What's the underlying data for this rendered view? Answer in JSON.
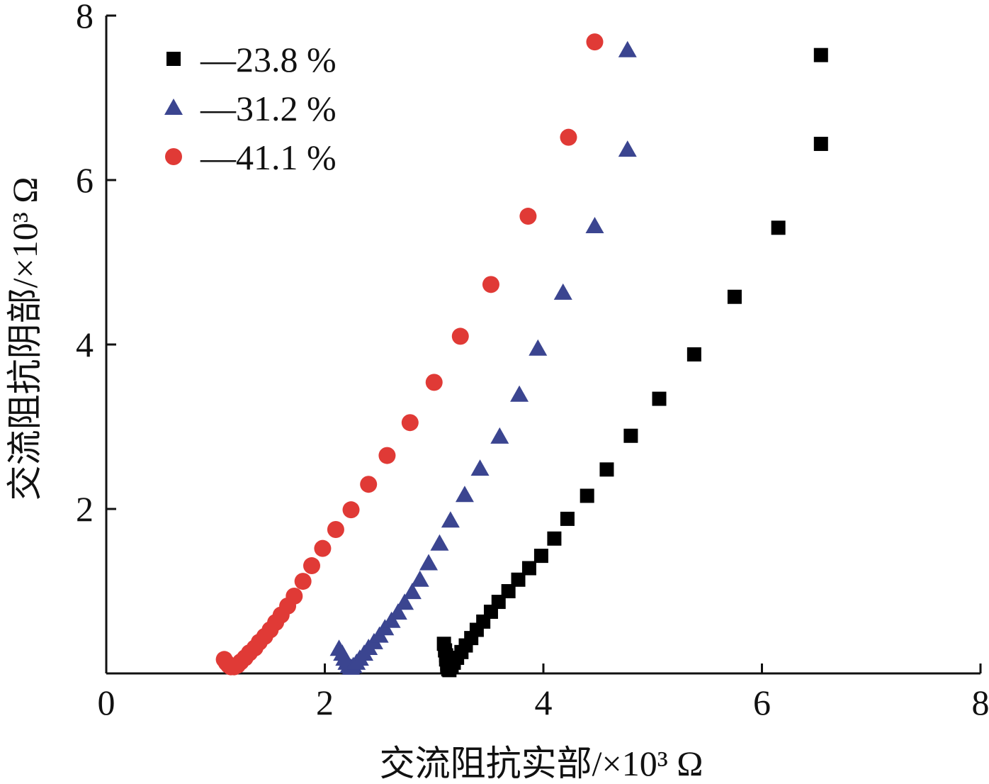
{
  "chart_data": {
    "type": "scatter",
    "title": "",
    "xlabel": "交流阻抗实部/×10³ Ω",
    "ylabel": "交流阻抗阴部/×10³ Ω",
    "xlim": [
      0,
      8
    ],
    "ylim": [
      0,
      8
    ],
    "x_ticks": [
      "0",
      "2",
      "4",
      "6",
      "8"
    ],
    "y_ticks": [
      "2",
      "4",
      "6",
      "8"
    ],
    "grid": false,
    "legend_position": "top-left",
    "series": [
      {
        "name": "—23.8 %",
        "marker": "square",
        "color": "#000000",
        "points": [
          [
            3.09,
            0.36
          ],
          [
            3.1,
            0.28
          ],
          [
            3.11,
            0.22
          ],
          [
            3.11,
            0.17
          ],
          [
            3.12,
            0.12
          ],
          [
            3.12,
            0.08
          ],
          [
            3.13,
            0.05
          ],
          [
            3.14,
            0.04
          ],
          [
            3.16,
            0.08
          ],
          [
            3.18,
            0.13
          ],
          [
            3.21,
            0.19
          ],
          [
            3.25,
            0.26
          ],
          [
            3.29,
            0.34
          ],
          [
            3.34,
            0.43
          ],
          [
            3.39,
            0.53
          ],
          [
            3.45,
            0.63
          ],
          [
            3.52,
            0.75
          ],
          [
            3.59,
            0.87
          ],
          [
            3.68,
            1.0
          ],
          [
            3.77,
            1.14
          ],
          [
            3.87,
            1.28
          ],
          [
            3.98,
            1.43
          ],
          [
            4.1,
            1.64
          ],
          [
            4.22,
            1.88
          ],
          [
            4.4,
            2.16
          ],
          [
            4.58,
            2.48
          ],
          [
            4.8,
            2.89
          ],
          [
            5.06,
            3.34
          ],
          [
            5.38,
            3.88
          ],
          [
            5.75,
            4.58
          ],
          [
            6.15,
            5.42
          ],
          [
            6.54,
            6.44
          ],
          [
            6.54,
            7.52
          ]
        ]
      },
      {
        "name": "—31.2 %",
        "marker": "triangle",
        "color": "#3b4590",
        "points": [
          [
            2.13,
            0.3
          ],
          [
            2.16,
            0.24
          ],
          [
            2.18,
            0.18
          ],
          [
            2.2,
            0.13
          ],
          [
            2.22,
            0.09
          ],
          [
            2.24,
            0.07
          ],
          [
            2.26,
            0.09
          ],
          [
            2.29,
            0.13
          ],
          [
            2.32,
            0.18
          ],
          [
            2.36,
            0.24
          ],
          [
            2.4,
            0.31
          ],
          [
            2.45,
            0.38
          ],
          [
            2.5,
            0.46
          ],
          [
            2.55,
            0.55
          ],
          [
            2.61,
            0.64
          ],
          [
            2.67,
            0.74
          ],
          [
            2.73,
            0.86
          ],
          [
            2.8,
            0.99
          ],
          [
            2.87,
            1.14
          ],
          [
            2.95,
            1.34
          ],
          [
            3.05,
            1.58
          ],
          [
            3.15,
            1.86
          ],
          [
            3.28,
            2.17
          ],
          [
            3.42,
            2.49
          ],
          [
            3.6,
            2.88
          ],
          [
            3.78,
            3.39
          ],
          [
            3.95,
            3.95
          ],
          [
            4.18,
            4.63
          ],
          [
            4.47,
            5.44
          ],
          [
            4.77,
            6.37
          ],
          [
            4.77,
            7.58
          ]
        ]
      },
      {
        "name": "—41.1 %",
        "marker": "circle",
        "color": "#e03a36",
        "points": [
          [
            1.08,
            0.17
          ],
          [
            1.1,
            0.13
          ],
          [
            1.12,
            0.1
          ],
          [
            1.14,
            0.08
          ],
          [
            1.17,
            0.08
          ],
          [
            1.2,
            0.1
          ],
          [
            1.23,
            0.14
          ],
          [
            1.27,
            0.19
          ],
          [
            1.31,
            0.25
          ],
          [
            1.36,
            0.31
          ],
          [
            1.4,
            0.38
          ],
          [
            1.45,
            0.45
          ],
          [
            1.5,
            0.53
          ],
          [
            1.55,
            0.62
          ],
          [
            1.6,
            0.71
          ],
          [
            1.66,
            0.82
          ],
          [
            1.72,
            0.94
          ],
          [
            1.8,
            1.12
          ],
          [
            1.88,
            1.31
          ],
          [
            1.98,
            1.52
          ],
          [
            2.1,
            1.75
          ],
          [
            2.24,
            1.99
          ],
          [
            2.4,
            2.3
          ],
          [
            2.57,
            2.65
          ],
          [
            2.78,
            3.05
          ],
          [
            3.0,
            3.54
          ],
          [
            3.24,
            4.1
          ],
          [
            3.52,
            4.73
          ],
          [
            3.86,
            5.56
          ],
          [
            4.23,
            6.52
          ],
          [
            4.47,
            7.68
          ]
        ]
      }
    ]
  }
}
